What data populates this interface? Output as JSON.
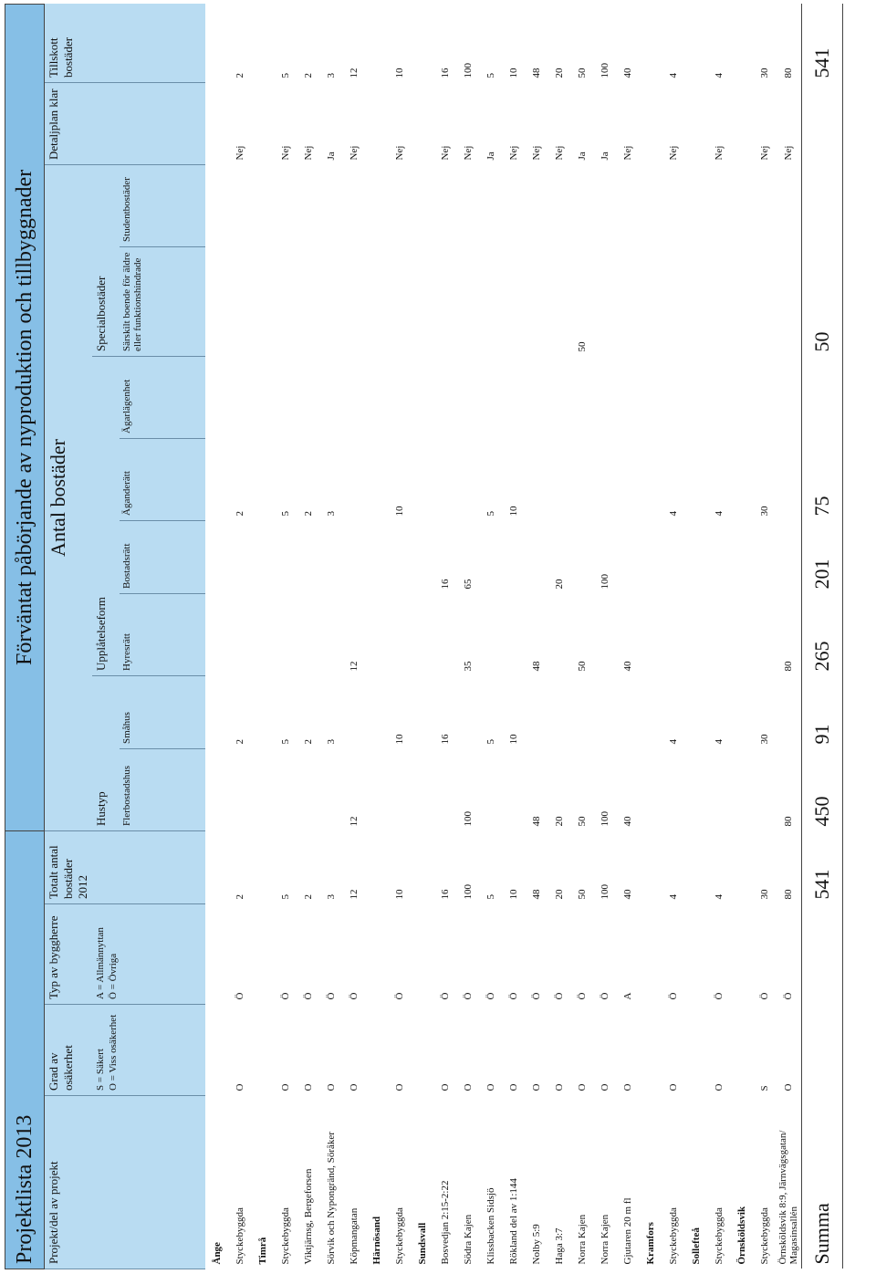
{
  "header": {
    "title": "Projektlista 2013",
    "heading": "Förväntat påbörjande av nyproduktion och tillbyggnader",
    "antal": "Antal bostäder",
    "project": "Projekt/del av projekt",
    "grad": "Grad av osäkerhet",
    "grad_legend": [
      "S = Säkert",
      "O = Viss osäkerhet"
    ],
    "typ": "Typ av byggherre",
    "typ_legend": [
      "A = Allmännyttan",
      "Ö = Övriga"
    ],
    "totalt": "Totalt antal bostäder 2012",
    "hustyp": "Hustyp",
    "upplatelse": "Upplåtelseform",
    "special": "Specialbostäder",
    "detaljplan": "Detaljplan klar",
    "tillskott": "Tillskott bostäder",
    "sub": [
      "Flerbostadshus",
      "Småhus",
      "Hyresrätt",
      "Bostadsrätt",
      "Äganderätt",
      "Ägarlägenhet",
      "Särskilt boende för äldre eller funktionshindrade",
      "Studentbostäder"
    ]
  },
  "sections": [
    {
      "name": "Ånge",
      "rows": [
        [
          "Styckebyggda",
          "O",
          "Ö",
          2,
          null,
          2,
          null,
          null,
          2,
          null,
          null,
          null,
          "Nej",
          2
        ]
      ]
    },
    {
      "name": "Timrå",
      "rows": [
        [
          "Styckebyggda",
          "O",
          "Ö",
          5,
          null,
          5,
          null,
          null,
          5,
          null,
          null,
          null,
          "Nej",
          5
        ],
        [
          "Viktjärnsg, Bergeforsen",
          "O",
          "Ö",
          2,
          null,
          2,
          null,
          null,
          2,
          null,
          null,
          null,
          "Nej",
          2
        ],
        [
          "Sörvik och Nypongränd, Söråker",
          "O",
          "Ö",
          3,
          null,
          3,
          null,
          null,
          3,
          null,
          null,
          null,
          "Ja",
          3
        ],
        [
          "Köpmangatan",
          "O",
          "Ö",
          12,
          12,
          null,
          12,
          null,
          null,
          null,
          null,
          null,
          "Nej",
          12
        ]
      ]
    },
    {
      "name": "Härnösand",
      "rows": [
        [
          "Styckebyggda",
          "O",
          "Ö",
          10,
          null,
          10,
          null,
          null,
          10,
          null,
          null,
          null,
          "Nej",
          10
        ]
      ]
    },
    {
      "name": "Sundsvall",
      "rows": [
        [
          "Bosvedjan 2:15-2:22",
          "O",
          "Ö",
          16,
          null,
          16,
          null,
          16,
          null,
          null,
          null,
          null,
          "Nej",
          16
        ],
        [
          "Södra Kajen",
          "O",
          "Ö",
          100,
          100,
          null,
          35,
          65,
          null,
          null,
          null,
          null,
          "Nej",
          100
        ],
        [
          "Klissbacken Sidsjö",
          "O",
          "Ö",
          5,
          null,
          5,
          null,
          null,
          5,
          null,
          null,
          null,
          "Ja",
          5
        ],
        [
          "Rökland del av 1:144",
          "O",
          "Ö",
          10,
          null,
          10,
          null,
          null,
          10,
          null,
          null,
          null,
          "Nej",
          10
        ],
        [
          "Nolby 5:9",
          "O",
          "Ö",
          48,
          48,
          null,
          48,
          null,
          null,
          null,
          null,
          null,
          "Nej",
          48
        ],
        [
          "Haga 3:7",
          "O",
          "Ö",
          20,
          20,
          null,
          null,
          20,
          null,
          null,
          null,
          null,
          "Nej",
          20
        ],
        [
          "Norra Kajen",
          "O",
          "Ö",
          50,
          50,
          null,
          50,
          null,
          null,
          null,
          50,
          null,
          "Ja",
          50
        ],
        [
          "Norra Kajen",
          "O",
          "Ö",
          100,
          100,
          null,
          null,
          100,
          null,
          null,
          null,
          null,
          "Ja",
          100
        ],
        [
          "Gjutaren 20 m fl",
          "O",
          "A",
          40,
          40,
          null,
          40,
          null,
          null,
          null,
          null,
          null,
          "Nej",
          40
        ]
      ]
    },
    {
      "name": "Kramfors",
      "rows": [
        [
          "Styckebyggda",
          "O",
          "Ö",
          4,
          null,
          4,
          null,
          null,
          4,
          null,
          null,
          null,
          "Nej",
          4
        ]
      ]
    },
    {
      "name": "Sollefteå",
      "rows": [
        [
          "Styckebyggda",
          "O",
          "Ö",
          4,
          null,
          4,
          null,
          null,
          4,
          null,
          null,
          null,
          "Nej",
          4
        ]
      ]
    },
    {
      "name": "Örnsköldsvik",
      "rows": [
        [
          "Styckebyggda",
          "S",
          "Ö",
          30,
          null,
          30,
          null,
          null,
          30,
          null,
          null,
          null,
          "Nej",
          30
        ],
        [
          "Örnsköldsvik 8:9, Järnvägsgatan/ Magasinsallén",
          "O",
          "Ö",
          80,
          80,
          null,
          80,
          null,
          null,
          null,
          null,
          null,
          "Nej",
          80
        ]
      ]
    }
  ],
  "summa": [
    "Summa",
    null,
    null,
    541,
    450,
    91,
    265,
    201,
    75,
    null,
    50,
    null,
    null,
    541
  ]
}
